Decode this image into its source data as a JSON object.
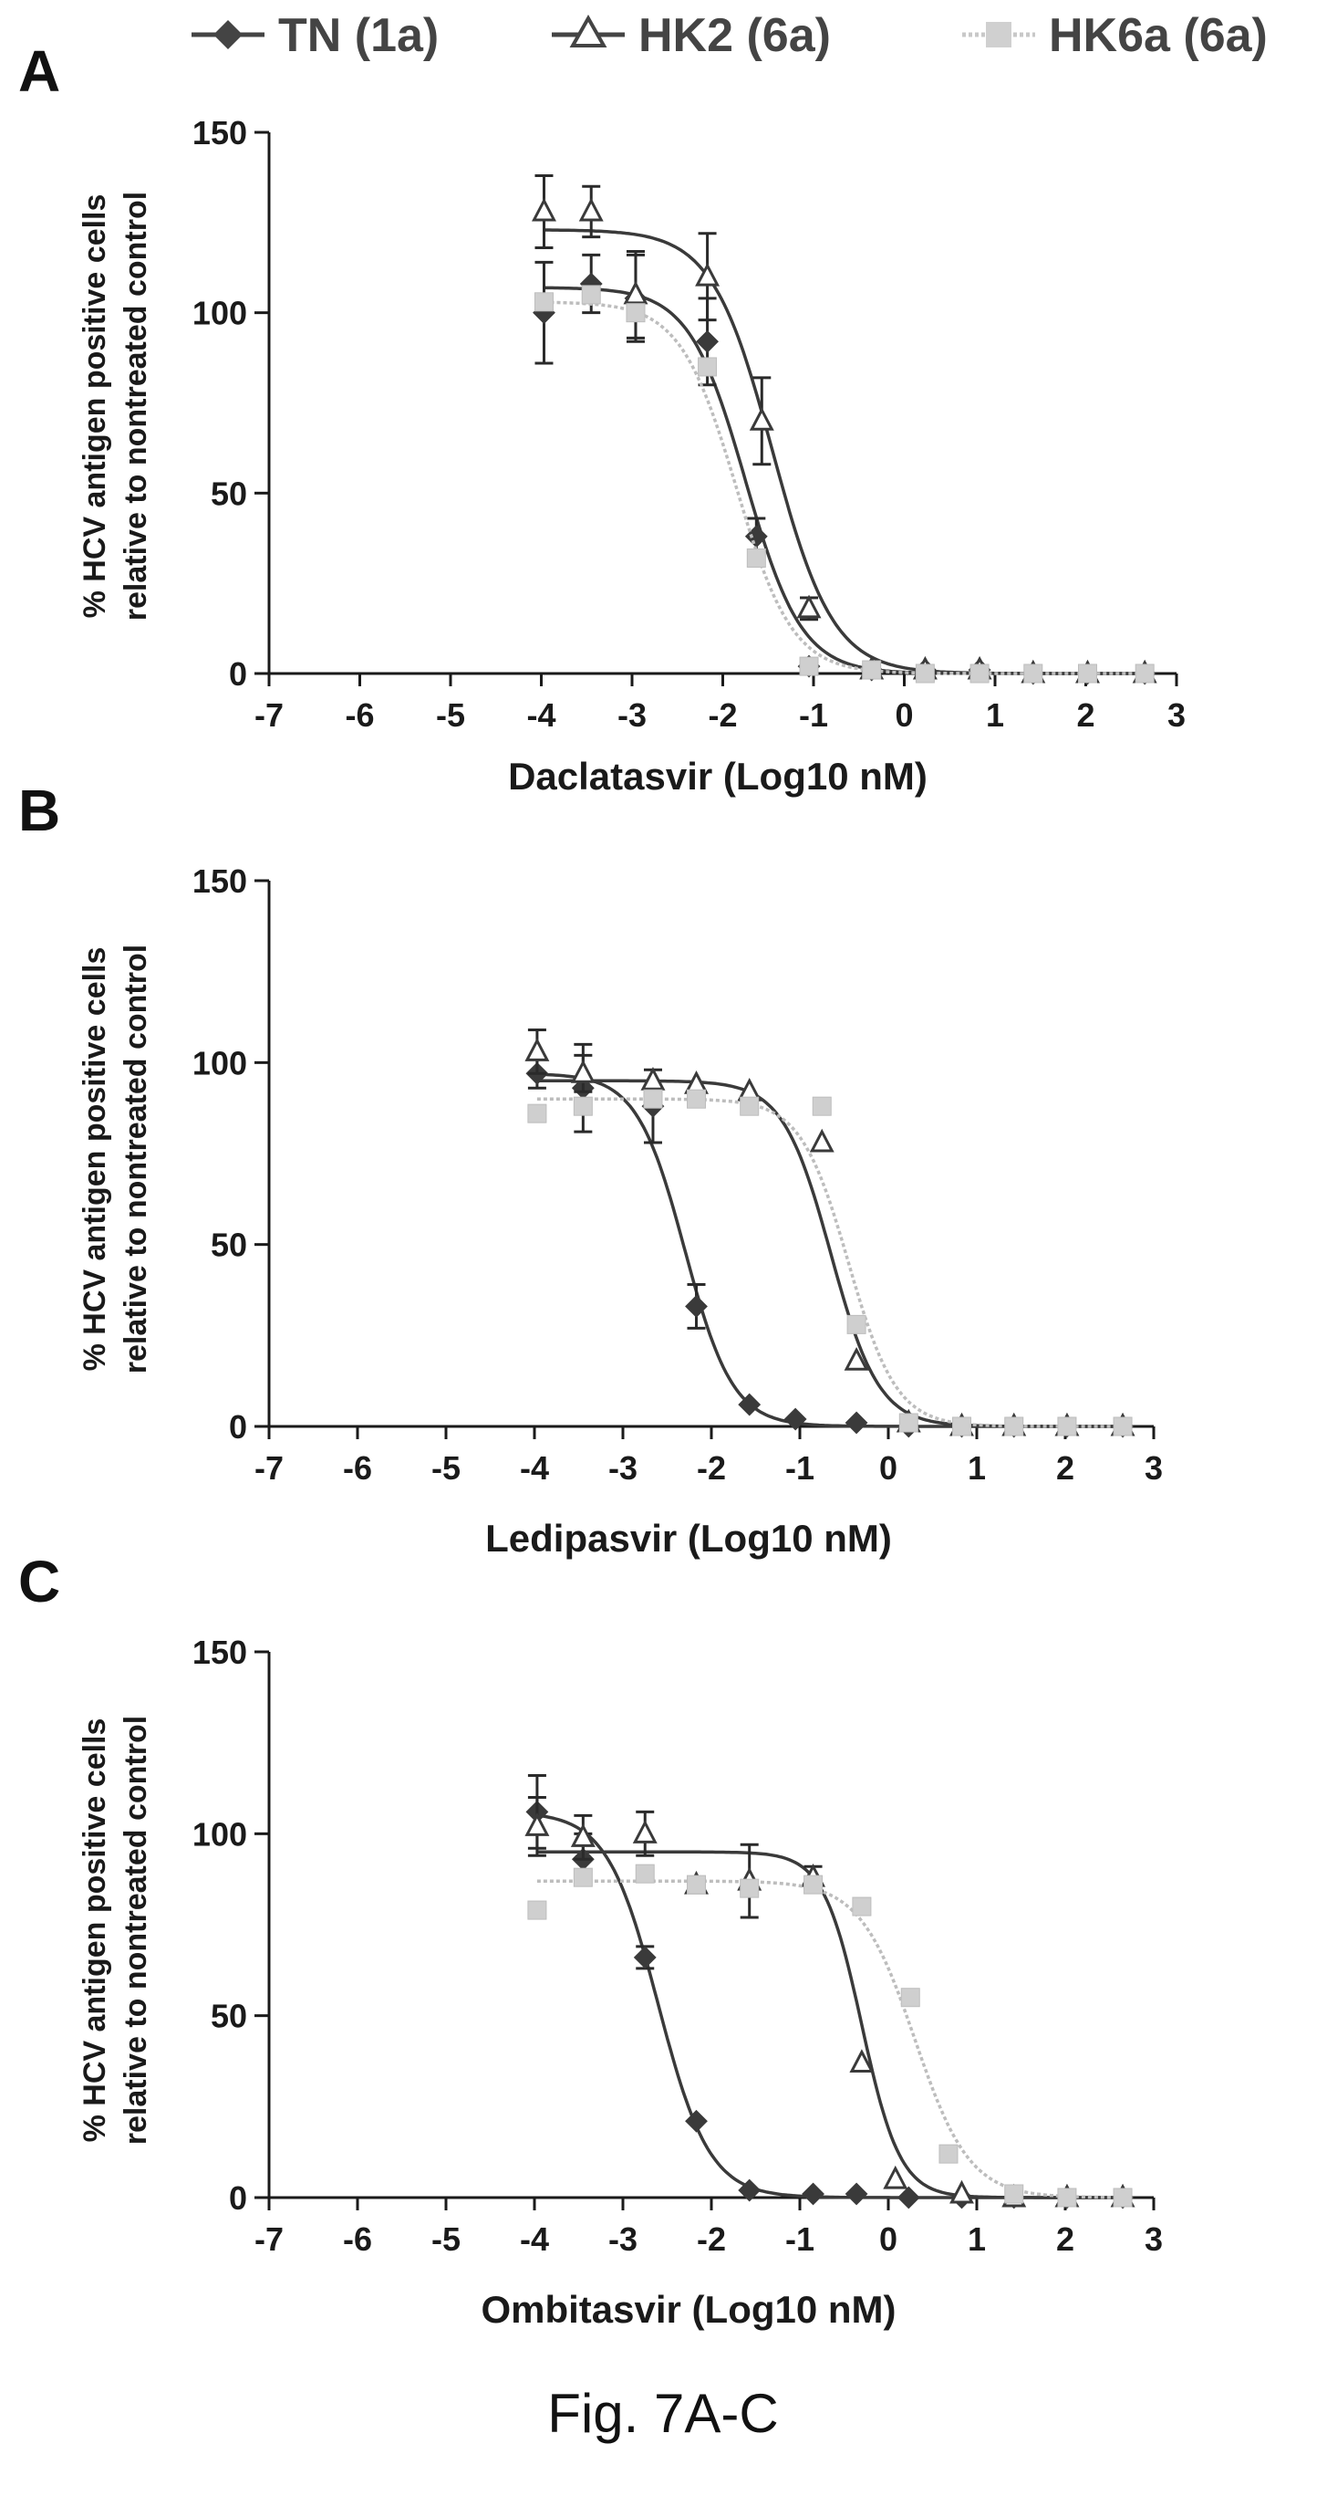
{
  "legend": [
    {
      "label": "TN (1a)",
      "marker": "diamond",
      "color": "#444444"
    },
    {
      "label": "HK2 (6a)",
      "marker": "triangle",
      "color": "#444444"
    },
    {
      "label": "HK6a (6a)",
      "marker": "square",
      "color": "#c8c8c8"
    }
  ],
  "caption": "Fig. 7A-C",
  "chart_data": [
    {
      "type": "scatter",
      "panel": "A",
      "xlabel": "Daclatasvir (Log10 nM)",
      "ylabel": [
        "% HCV antigen positive cells",
        "relative to nontreated control"
      ],
      "xlim": [
        -7,
        3
      ],
      "ylim": [
        0,
        150
      ],
      "xticks": [
        "-7",
        "-6",
        "-5",
        "-4",
        "-3",
        "-2",
        "-1",
        "0",
        "1",
        "2",
        "3"
      ],
      "yticks": [
        "0",
        "50",
        "100",
        "150"
      ],
      "series": [
        {
          "name": "TN (1a)",
          "top": 107,
          "logEC50": -1.75,
          "hill": 1.4,
          "x": [
            -3.97,
            -3.45,
            -2.96,
            -2.17,
            -1.63,
            -1.05,
            -0.36,
            0.23,
            0.83,
            1.42,
            2.02,
            2.65
          ],
          "y": [
            100,
            108,
            104,
            92,
            38,
            2,
            1,
            1,
            1,
            0,
            0,
            0
          ],
          "err": [
            14,
            8,
            12,
            12,
            5,
            1,
            0,
            0,
            0,
            0,
            0,
            0
          ]
        },
        {
          "name": "HK2 (6a)",
          "top": 123,
          "logEC50": -1.45,
          "hill": 1.3,
          "x": [
            -3.97,
            -3.45,
            -2.96,
            -2.17,
            -1.57,
            -1.05,
            -0.36,
            0.23,
            0.83,
            1.42,
            2.02,
            2.65
          ],
          "y": [
            128,
            128,
            105,
            110,
            70,
            18,
            1,
            1,
            1,
            0,
            0,
            0
          ],
          "err": [
            10,
            7,
            12,
            12,
            12,
            3,
            0,
            0,
            0,
            0,
            0,
            0
          ]
        },
        {
          "name": "HK6a (6a)",
          "top": 103,
          "logEC50": -1.85,
          "hill": 1.4,
          "x": [
            -3.97,
            -3.45,
            -2.96,
            -2.17,
            -1.63,
            -1.05,
            -0.36,
            0.23,
            0.83,
            1.42,
            2.02,
            2.65
          ],
          "y": [
            103,
            105,
            100,
            85,
            32,
            2,
            1,
            0,
            0,
            0,
            0,
            0
          ],
          "err": [
            0,
            0,
            0,
            0,
            0,
            0,
            0,
            0,
            0,
            0,
            0,
            0
          ]
        }
      ]
    },
    {
      "type": "scatter",
      "panel": "B",
      "xlabel": "Ledipasvir (Log10 nM)",
      "ylabel": [
        "% HCV antigen positive cells",
        "relative to nontreated control"
      ],
      "xlim": [
        -7,
        3
      ],
      "ylim": [
        0,
        150
      ],
      "xticks": [
        "-7",
        "-6",
        "-5",
        "-4",
        "-3",
        "-2",
        "-1",
        "0",
        "1",
        "2",
        "3"
      ],
      "yticks": [
        "0",
        "50",
        "100",
        "150"
      ],
      "series": [
        {
          "name": "TN (1a)",
          "top": 97,
          "logEC50": -2.3,
          "hill": 1.6,
          "x": [
            -3.97,
            -3.45,
            -2.66,
            -2.17,
            -1.57,
            -1.05,
            -0.36,
            0.23,
            0.83,
            1.42,
            2.02,
            2.65
          ],
          "y": [
            97,
            93,
            88,
            33,
            6,
            2,
            1,
            0,
            0,
            0,
            0,
            0
          ],
          "err": [
            4,
            12,
            10,
            6,
            0,
            0,
            0,
            0,
            0,
            0,
            0,
            0
          ]
        },
        {
          "name": "HK2 (6a)",
          "top": 95,
          "logEC50": -0.65,
          "hill": 1.6,
          "x": [
            -3.97,
            -3.45,
            -2.66,
            -2.17,
            -1.57,
            -0.75,
            -0.36,
            0.23,
            0.83,
            1.42,
            2.02,
            2.65
          ],
          "y": [
            103,
            97,
            95,
            94,
            92,
            78,
            18,
            1,
            0,
            0,
            0,
            0
          ],
          "err": [
            6,
            5,
            0,
            0,
            0,
            0,
            0,
            0,
            0,
            0,
            0,
            0
          ]
        },
        {
          "name": "HK6a (6a)",
          "top": 90,
          "logEC50": -0.45,
          "hill": 1.6,
          "x": [
            -3.97,
            -3.45,
            -2.66,
            -2.17,
            -1.57,
            -0.75,
            -0.36,
            0.23,
            0.83,
            1.42,
            2.02,
            2.65
          ],
          "y": [
            86,
            88,
            90,
            90,
            88,
            88,
            28,
            1,
            0,
            0,
            0,
            0
          ],
          "err": [
            0,
            0,
            0,
            0,
            0,
            0,
            0,
            0,
            0,
            0,
            0,
            0
          ]
        }
      ]
    },
    {
      "type": "scatter",
      "panel": "C",
      "xlabel": "Ombitasvir (Log10 nM)",
      "ylabel": [
        "% HCV antigen positive cells",
        "relative to nontreated control"
      ],
      "xlim": [
        -7,
        3
      ],
      "ylim": [
        0,
        150
      ],
      "xticks": [
        "-7",
        "-6",
        "-5",
        "-4",
        "-3",
        "-2",
        "-1",
        "0",
        "1",
        "2",
        "3"
      ],
      "yticks": [
        "0",
        "50",
        "100",
        "150"
      ],
      "series": [
        {
          "name": "TN (1a)",
          "top": 106,
          "logEC50": -2.6,
          "hill": 1.5,
          "x": [
            -3.97,
            -3.45,
            -2.75,
            -2.17,
            -1.57,
            -0.85,
            -0.36,
            0.23,
            0.83,
            1.42,
            2.02,
            2.65
          ],
          "y": [
            106,
            93,
            66,
            21,
            2,
            1,
            1,
            0,
            0,
            0,
            0,
            0
          ],
          "err": [
            10,
            7,
            3,
            0,
            0,
            0,
            0,
            0,
            0,
            0,
            0,
            0
          ]
        },
        {
          "name": "HK2 (6a)",
          "top": 95,
          "logEC50": -0.3,
          "hill": 2.0,
          "x": [
            -3.97,
            -3.45,
            -2.75,
            -2.17,
            -1.57,
            -0.85,
            -0.3,
            0.08,
            0.83,
            1.42,
            2.02,
            2.65
          ],
          "y": [
            102,
            99,
            100,
            86,
            87,
            88,
            37,
            5,
            1,
            0,
            0,
            0
          ],
          "err": [
            8,
            6,
            6,
            0,
            10,
            3,
            0,
            0,
            0,
            0,
            0,
            0
          ]
        },
        {
          "name": "HK6a (6a)",
          "top": 87,
          "logEC50": 0.3,
          "hill": 1.4,
          "x": [
            -3.97,
            -3.45,
            -2.75,
            -2.17,
            -1.57,
            -0.85,
            -0.3,
            0.25,
            0.68,
            1.42,
            2.02,
            2.65
          ],
          "y": [
            79,
            88,
            89,
            86,
            85,
            86,
            80,
            55,
            12,
            1,
            0,
            0
          ],
          "err": [
            0,
            0,
            0,
            0,
            0,
            0,
            0,
            0,
            0,
            0,
            0,
            0
          ]
        }
      ]
    }
  ]
}
